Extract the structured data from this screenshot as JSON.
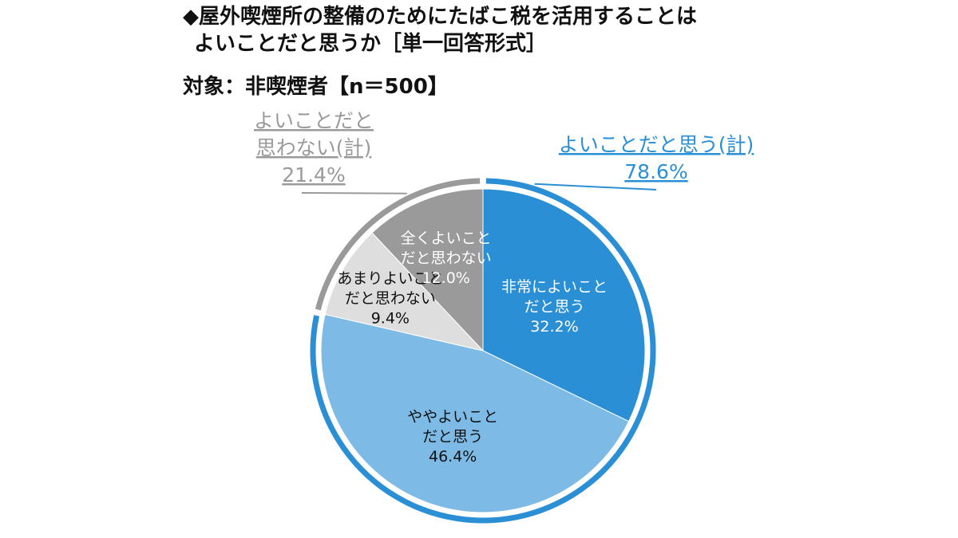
{
  "header": {
    "title_line1": "◆屋外喫煙所の整備のためにたばこ税を活用することは",
    "title_line2": "よいことだと思うか［単一回答形式］",
    "subject": "対象：非喫煙者【n＝500】"
  },
  "chart_data": {
    "type": "pie",
    "slices": [
      {
        "name": "非常によいことだと思う",
        "label_lines": [
          "非常によいこと",
          "だと思う"
        ],
        "value": 32.2,
        "display": "32.2%",
        "color": "#2a8fd5",
        "text_color": "#ffffff"
      },
      {
        "name": "ややよいことだと思う",
        "label_lines": [
          "ややよいこと",
          "だと思う"
        ],
        "value": 46.4,
        "display": "46.4%",
        "color": "#7dbbe6",
        "text_color": "#111111"
      },
      {
        "name": "あまりよいことだと思わない",
        "label_lines": [
          "あまりよいこと",
          "だと思わない"
        ],
        "value": 9.4,
        "display": "9.4%",
        "color": "#dedede",
        "text_color": "#111111"
      },
      {
        "name": "全くよいことだと思わない",
        "label_lines": [
          "全くよいこと",
          "だと思わない"
        ],
        "value": 12.0,
        "display": "12.0%",
        "color": "#9a9a9a",
        "text_color": "#ffffff"
      }
    ],
    "groups": [
      {
        "name": "よいことだと思う(計)",
        "label_lines": [
          "よいことだと思う(計)"
        ],
        "value": 78.6,
        "display": "78.6%",
        "color": "#2a8fd5"
      },
      {
        "name": "よいことだと思わない(計)",
        "label_lines": [
          "よいことだと",
          "思わない(計)"
        ],
        "value": 21.4,
        "display": "21.4%",
        "color": "#9a9a9a"
      }
    ]
  }
}
